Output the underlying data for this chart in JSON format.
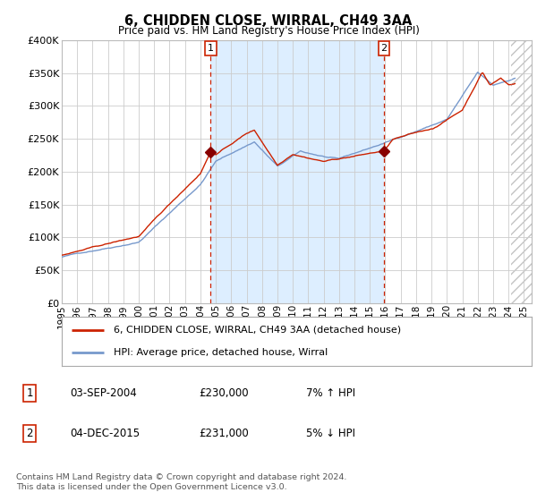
{
  "title": "6, CHIDDEN CLOSE, WIRRAL, CH49 3AA",
  "subtitle": "Price paid vs. HM Land Registry's House Price Index (HPI)",
  "ylim": [
    0,
    400000
  ],
  "xlim_start": 1995.0,
  "xlim_end": 2025.5,
  "yticks": [
    0,
    50000,
    100000,
    150000,
    200000,
    250000,
    300000,
    350000,
    400000
  ],
  "ytick_labels": [
    "£0",
    "£50K",
    "£100K",
    "£150K",
    "£200K",
    "£250K",
    "£300K",
    "£350K",
    "£400K"
  ],
  "xticks": [
    1995,
    1996,
    1997,
    1998,
    1999,
    2000,
    2001,
    2002,
    2003,
    2004,
    2005,
    2006,
    2007,
    2008,
    2009,
    2010,
    2011,
    2012,
    2013,
    2014,
    2015,
    2016,
    2017,
    2018,
    2019,
    2020,
    2021,
    2022,
    2023,
    2024,
    2025
  ],
  "chart_bg": "#ffffff",
  "fig_bg": "#ffffff",
  "grid_color": "#cccccc",
  "shade_color": "#ddeeff",
  "line1_color": "#cc2200",
  "line2_color": "#7799cc",
  "vline1_x": 2004.67,
  "vline2_x": 2015.92,
  "marker1_label": "1",
  "marker2_label": "2",
  "legend_label1": "6, CHIDDEN CLOSE, WIRRAL, CH49 3AA (detached house)",
  "legend_label2": "HPI: Average price, detached house, Wirral",
  "table_row1": [
    "1",
    "03-SEP-2004",
    "£230,000",
    "7% ↑ HPI"
  ],
  "table_row2": [
    "2",
    "04-DEC-2015",
    "£231,000",
    "5% ↓ HPI"
  ],
  "footer": "Contains HM Land Registry data © Crown copyright and database right 2024.\nThis data is licensed under the Open Government Licence v3.0.",
  "hatch_start_year": 2024.17,
  "sale1_year": 2004.67,
  "sale1_price": 230000,
  "sale2_year": 2015.92,
  "sale2_price": 231000
}
